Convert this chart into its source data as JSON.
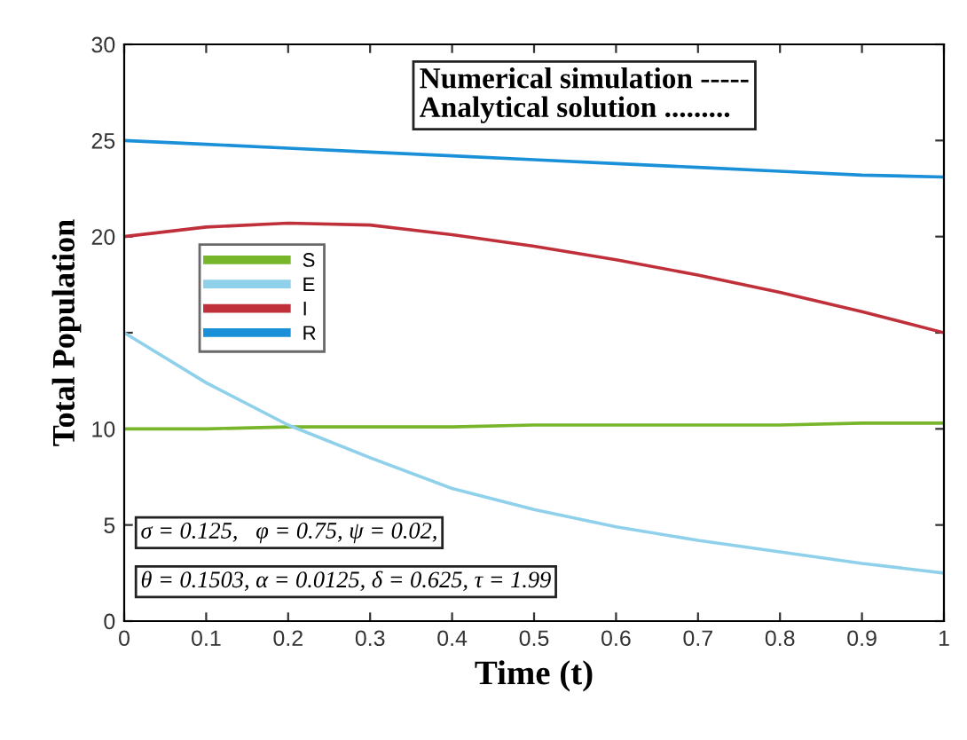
{
  "chart_data": {
    "type": "line",
    "xlabel": "Time (t)",
    "ylabel": "Total Population",
    "x": [
      0,
      0.1,
      0.2,
      0.3,
      0.4,
      0.5,
      0.6,
      0.7,
      0.8,
      0.9,
      1.0
    ],
    "series": [
      {
        "name": "S",
        "color": "#77b52a",
        "values": [
          10.0,
          10.0,
          10.1,
          10.1,
          10.1,
          10.2,
          10.2,
          10.2,
          10.2,
          10.3,
          10.3
        ]
      },
      {
        "name": "E",
        "color": "#8fd0ea",
        "values": [
          15.0,
          12.4,
          10.2,
          8.5,
          6.9,
          5.8,
          4.9,
          4.2,
          3.6,
          3.0,
          2.5
        ]
      },
      {
        "name": "I",
        "color": "#c0303a",
        "values": [
          20.0,
          20.5,
          20.7,
          20.6,
          20.1,
          19.5,
          18.8,
          18.0,
          17.1,
          16.1,
          15.0
        ]
      },
      {
        "name": "R",
        "color": "#1a90d8",
        "values": [
          25.0,
          24.8,
          24.6,
          24.4,
          24.2,
          24.0,
          23.8,
          23.6,
          23.4,
          23.2,
          23.1
        ]
      }
    ],
    "xlim": [
      0,
      1
    ],
    "ylim": [
      0,
      30
    ],
    "xticks": [
      0,
      0.1,
      0.2,
      0.3,
      0.4,
      0.5,
      0.6,
      0.7,
      0.8,
      0.9,
      1
    ],
    "yticks": [
      0,
      5,
      10,
      {
        "value": 15,
        "label": null
      },
      20,
      25,
      30
    ],
    "legend": "top left",
    "grid": false,
    "marker": "none",
    "line_style": "solid",
    "annotations": [
      "Numerical simulation -----\nAnalytical solution .........",
      "σ = 0.125,   φ = 0.75, ψ = 0.02,",
      "θ = 0.1503, α = 0.0125, δ = 0.625, τ = 1.99"
    ]
  }
}
